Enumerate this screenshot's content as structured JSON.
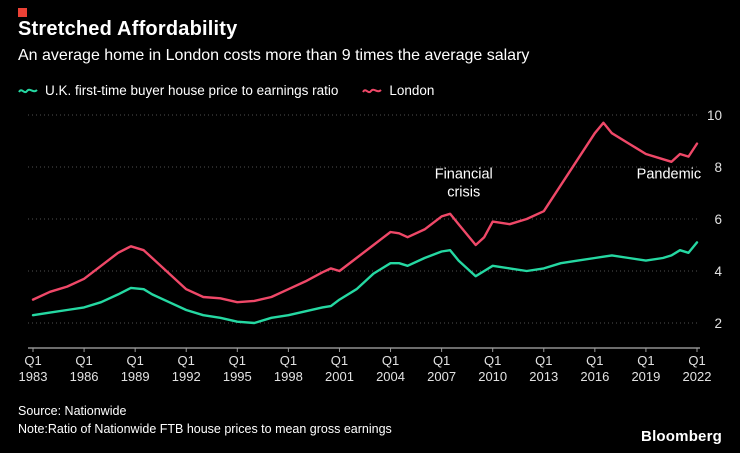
{
  "brand": {
    "logo": "Bloomberg",
    "accent_color": "#eb4135"
  },
  "header": {
    "title": "Stretched Affordability",
    "subtitle": "An average home in London costs more than 9 times the average salary"
  },
  "legend": [
    {
      "label": "U.K. first-time buyer house price to earnings ratio",
      "color": "#25d8a2"
    },
    {
      "label": "London",
      "color": "#ef4868"
    }
  ],
  "footer": {
    "source": "Source: Nationwide",
    "note": "Note:Ratio of Nationwide FTB house prices to mean gross earnings"
  },
  "chart_data": {
    "type": "line",
    "title": "Stretched Affordability",
    "subtitle": "An average home in London costs more than 9 times the average salary",
    "grid": "horizontal-dotted",
    "legend_position": "top-left",
    "y_axis_side": "right",
    "ylim": [
      1.1,
      10.4
    ],
    "yticks": [
      2,
      4,
      6,
      8,
      10
    ],
    "x": [
      1983,
      1984,
      1985,
      1986,
      1987,
      1988,
      1988.75,
      1989.5,
      1990,
      1991,
      1992,
      1993,
      1994,
      1995,
      1996,
      1997,
      1998,
      1999,
      2000,
      2000.5,
      2001,
      2002,
      2003,
      2004,
      2004.5,
      2005,
      2006,
      2007,
      2007.5,
      2008,
      2009,
      2009.5,
      2010,
      2011,
      2012,
      2013,
      2014,
      2015,
      2016,
      2016.5,
      2017,
      2018,
      2019,
      2020,
      2020.5,
      2021,
      2021.5,
      2022
    ],
    "series": [
      {
        "name": "U.K. first-time buyer house price to earnings ratio",
        "color": "#25d8a2",
        "values": [
          2.3,
          2.4,
          2.5,
          2.6,
          2.8,
          3.1,
          3.35,
          3.3,
          3.1,
          2.8,
          2.5,
          2.3,
          2.2,
          2.05,
          2.0,
          2.2,
          2.3,
          2.45,
          2.6,
          2.65,
          2.9,
          3.3,
          3.9,
          4.3,
          4.3,
          4.2,
          4.5,
          4.75,
          4.8,
          4.4,
          3.8,
          4.0,
          4.2,
          4.1,
          4.0,
          4.1,
          4.3,
          4.4,
          4.5,
          4.55,
          4.6,
          4.5,
          4.4,
          4.5,
          4.6,
          4.8,
          4.7,
          5.1
        ]
      },
      {
        "name": "London",
        "color": "#ef4868",
        "values": [
          2.9,
          3.2,
          3.4,
          3.7,
          4.2,
          4.7,
          4.95,
          4.8,
          4.5,
          3.9,
          3.3,
          3.0,
          2.95,
          2.8,
          2.85,
          3.0,
          3.3,
          3.6,
          3.95,
          4.1,
          4.0,
          4.5,
          5.0,
          5.5,
          5.45,
          5.3,
          5.6,
          6.1,
          6.2,
          5.8,
          5.0,
          5.3,
          5.9,
          5.8,
          6.0,
          6.3,
          7.3,
          8.3,
          9.3,
          9.7,
          9.3,
          8.9,
          8.5,
          8.3,
          8.2,
          8.5,
          8.4,
          8.9
        ]
      }
    ],
    "xticks": [
      {
        "line1": "Q1",
        "line2": "1983",
        "year": 1983
      },
      {
        "line1": "Q1",
        "line2": "1986",
        "year": 1986
      },
      {
        "line1": "Q1",
        "line2": "1989",
        "year": 1989
      },
      {
        "line1": "Q1",
        "line2": "1992",
        "year": 1992
      },
      {
        "line1": "Q1",
        "line2": "1995",
        "year": 1995
      },
      {
        "line1": "Q1",
        "line2": "1998",
        "year": 1998
      },
      {
        "line1": "Q1",
        "line2": "2001",
        "year": 2001
      },
      {
        "line1": "Q1",
        "line2": "2004",
        "year": 2004
      },
      {
        "line1": "Q1",
        "line2": "2007",
        "year": 2007
      },
      {
        "line1": "Q1",
        "line2": "2010",
        "year": 2010
      },
      {
        "line1": "Q1",
        "line2": "2013",
        "year": 2013
      },
      {
        "line1": "Q1",
        "line2": "2016",
        "year": 2016
      },
      {
        "line1": "Q1",
        "line2": "2019",
        "year": 2019
      },
      {
        "line1": "Q1",
        "line2": "2022",
        "year": 2022
      }
    ],
    "annotations": [
      {
        "lines": [
          "Financial",
          "crisis"
        ],
        "x": 2008.3,
        "value": 7.55
      },
      {
        "lines": [
          "Pandemic"
        ],
        "x": 2020.35,
        "value": 7.55
      }
    ]
  }
}
